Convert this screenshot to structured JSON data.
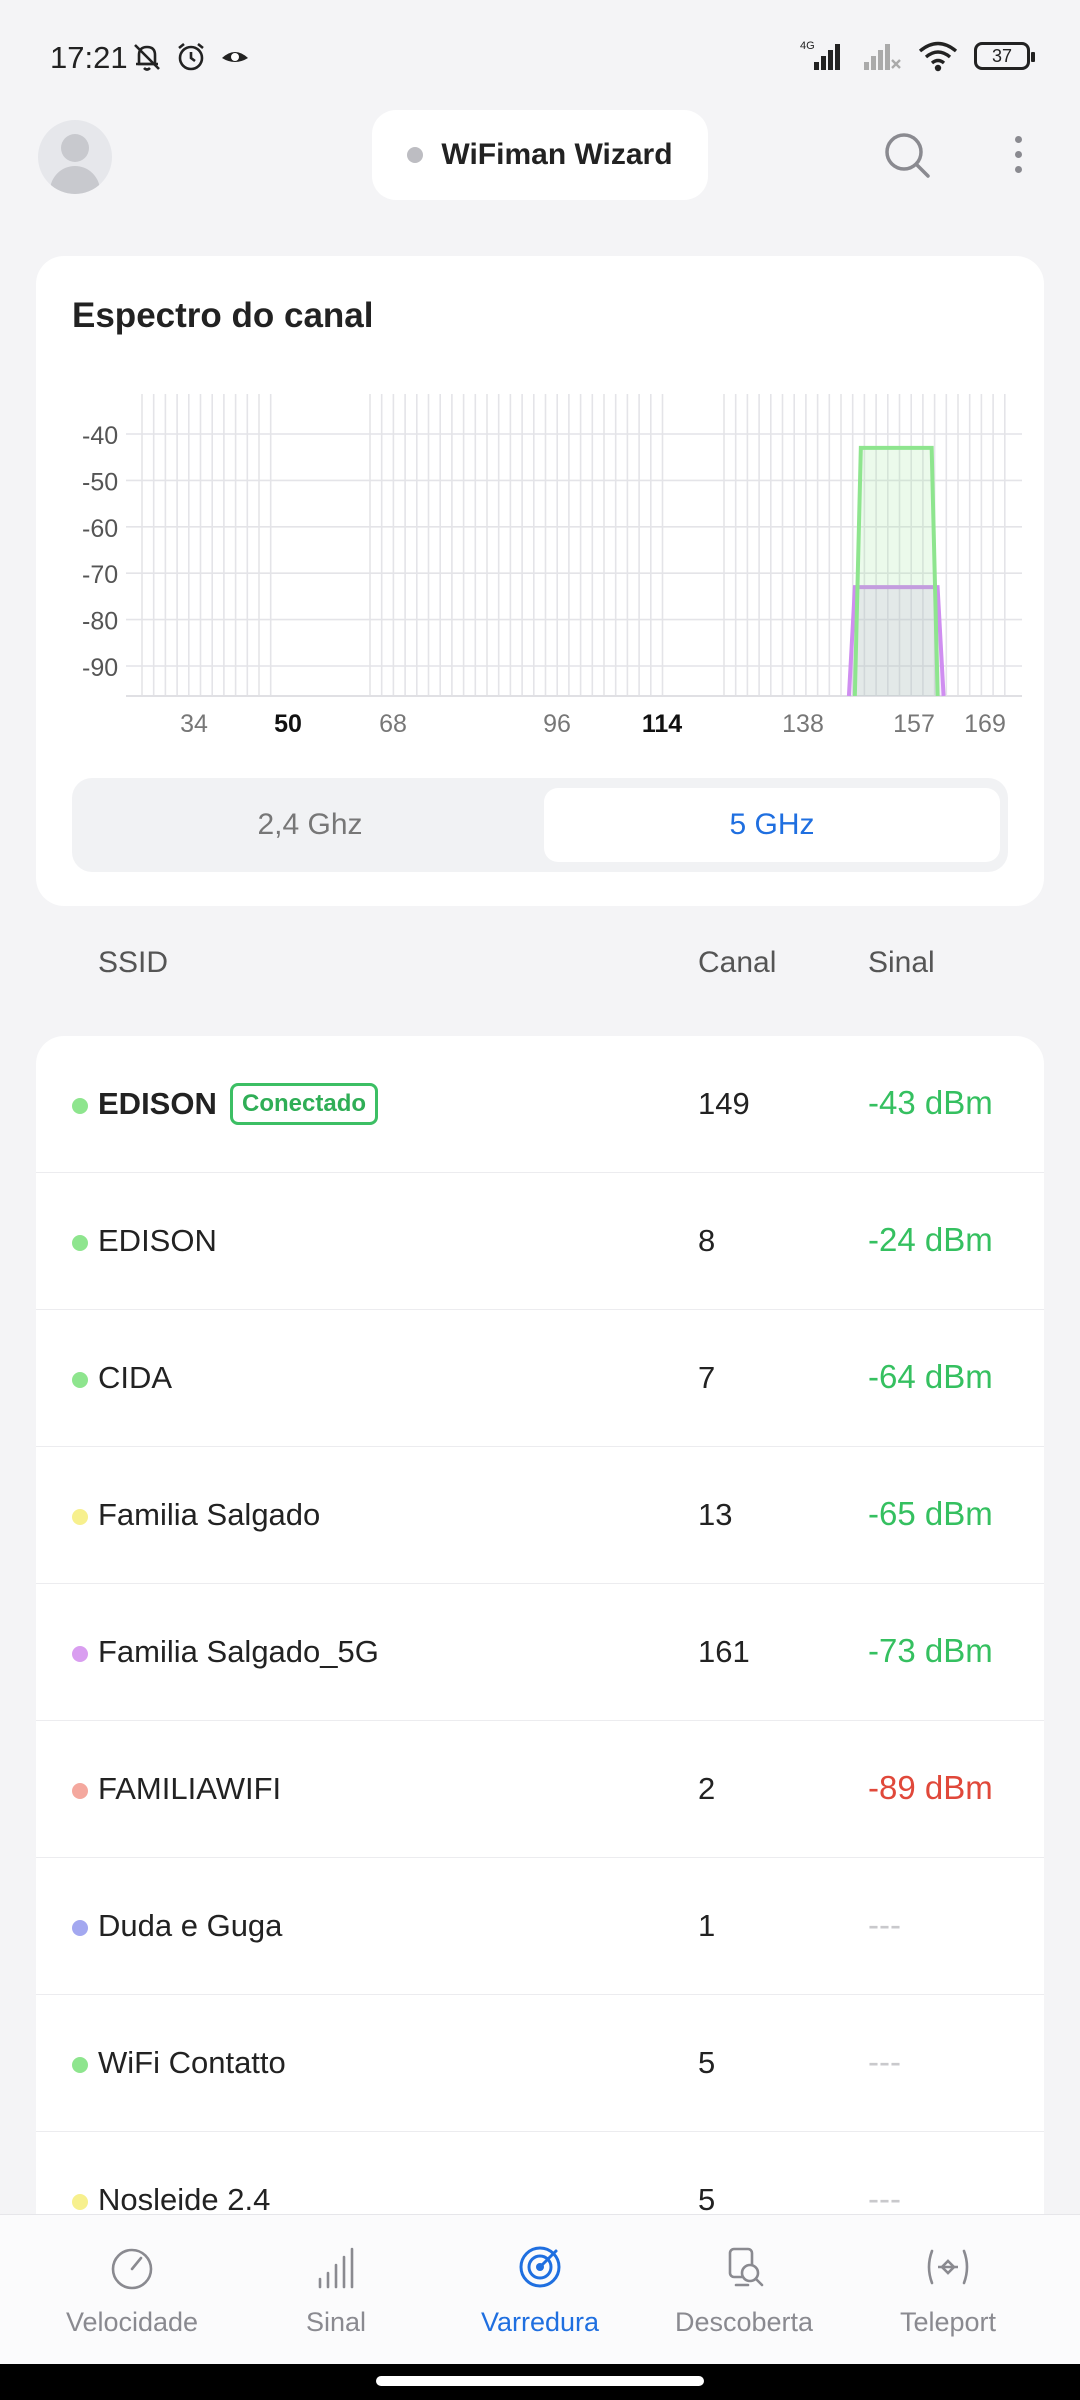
{
  "status_bar": {
    "time": "17:21",
    "network": "4G",
    "battery": "37",
    "icons_left": [
      "mute-icon",
      "alarm-icon",
      "eye-icon"
    ],
    "icons_right": [
      "signal-icon",
      "signal-no-service-icon",
      "wifi-icon",
      "battery-icon"
    ]
  },
  "header": {
    "title": "WiFiman Wizard",
    "icons": [
      "avatar-icon",
      "search-icon",
      "more-vertical-icon"
    ]
  },
  "card": {
    "title": "Espectro do canal",
    "band_options": [
      {
        "label": "2,4 Ghz",
        "selected": false
      },
      {
        "label": "5 GHz",
        "selected": true
      }
    ]
  },
  "chart_data": {
    "type": "area",
    "y_ticks": [
      "-40",
      "-50",
      "-60",
      "-70",
      "-80",
      "-90"
    ],
    "x_ticks": [
      {
        "label": "34",
        "bold": false
      },
      {
        "label": "50",
        "bold": true
      },
      {
        "label": "68",
        "bold": false
      },
      {
        "label": "96",
        "bold": false
      },
      {
        "label": "114",
        "bold": true
      },
      {
        "label": "138",
        "bold": false
      },
      {
        "label": "157",
        "bold": false
      },
      {
        "label": "169",
        "bold": false
      }
    ],
    "grid": true,
    "series": [
      {
        "color": "#8ee58e",
        "channel_from": 147,
        "channel_to": 161,
        "dbm": -43
      },
      {
        "color": "#cf8ef0",
        "channel_from": 146,
        "channel_to": 162,
        "dbm": -73
      }
    ]
  },
  "table": {
    "headers": {
      "ssid": "SSID",
      "channel": "Canal",
      "signal": "Sinal"
    },
    "connected_label": "Conectado",
    "rows": [
      {
        "ssid": "EDISON",
        "channel": "149",
        "signal": "-43 dBm",
        "dot": "#8ee58e",
        "connected": true,
        "level": "good"
      },
      {
        "ssid": "EDISON",
        "channel": "8",
        "signal": "-24 dBm",
        "dot": "#8ee58e",
        "connected": false,
        "level": "good"
      },
      {
        "ssid": "CIDA",
        "channel": "7",
        "signal": "-64 dBm",
        "dot": "#8ee58e",
        "connected": false,
        "level": "good"
      },
      {
        "ssid": "Familia Salgado",
        "channel": "13",
        "signal": "-65 dBm",
        "dot": "#f7f08e",
        "connected": false,
        "level": "good"
      },
      {
        "ssid": "Familia Salgado_5G",
        "channel": "161",
        "signal": "-73 dBm",
        "dot": "#d99ef0",
        "connected": false,
        "level": "good"
      },
      {
        "ssid": "FAMILIAWIFI",
        "channel": "2",
        "signal": "-89 dBm",
        "dot": "#f4a89e",
        "connected": false,
        "level": "bad"
      },
      {
        "ssid": "Duda e Guga",
        "channel": "1",
        "signal": "---",
        "dot": "#a3a8f0",
        "connected": false,
        "level": "none"
      },
      {
        "ssid": "WiFi Contatto",
        "channel": "5",
        "signal": "---",
        "dot": "#8ee58e",
        "connected": false,
        "level": "none"
      },
      {
        "ssid": "Nosleide 2.4",
        "channel": "5",
        "signal": "---",
        "dot": "#f7f08e",
        "connected": false,
        "level": "none"
      }
    ]
  },
  "bottom_nav": [
    {
      "label": "Velocidade",
      "icon": "speedometer-icon",
      "active": false
    },
    {
      "label": "Sinal",
      "icon": "signal-bars-icon",
      "active": false
    },
    {
      "label": "Varredura",
      "icon": "radar-icon",
      "active": true
    },
    {
      "label": "Descoberta",
      "icon": "device-discovery-icon",
      "active": false
    },
    {
      "label": "Teleport",
      "icon": "teleport-icon",
      "active": false
    }
  ],
  "colors": {
    "accent": "#1f6fe0",
    "good_signal": "#35c060",
    "bad_signal": "#e0483a"
  }
}
